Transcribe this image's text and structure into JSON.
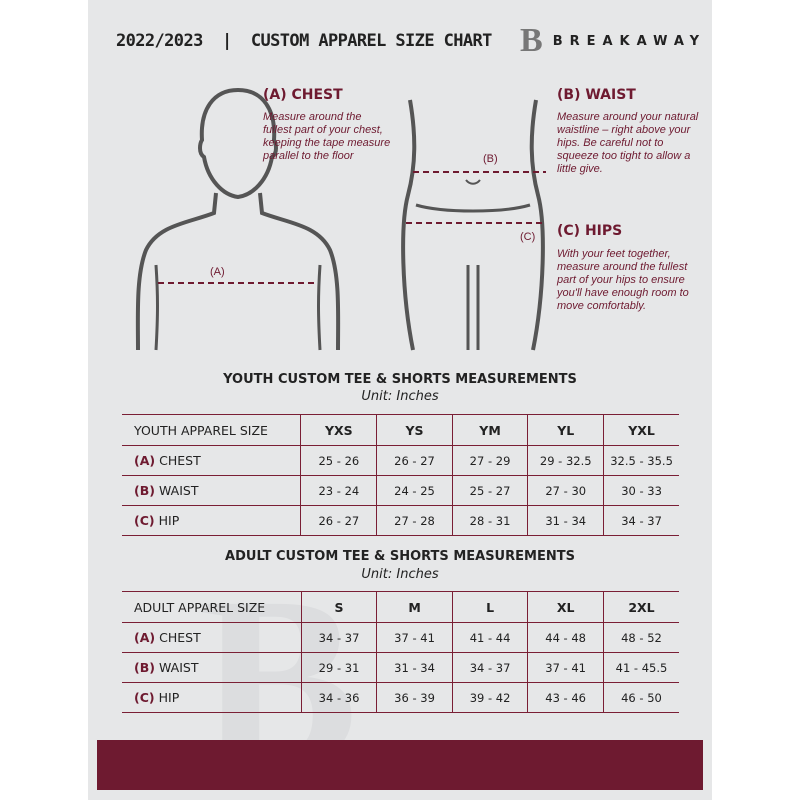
{
  "header": {
    "title": "2022/2023  |  CUSTOM APPAREL SIZE CHART",
    "brand": "BREAKAWAY",
    "logo_letter": "B"
  },
  "guide": {
    "chest": {
      "heading": "(A) CHEST",
      "marker": "(A)",
      "text": "Measure around the fullest part of your chest, keeping the tape measure parallel to the floor"
    },
    "waist": {
      "heading": "(B) WAIST",
      "marker": "(B)",
      "text": "Measure around your natural waistline – right above your hips. Be careful not to squeeze too tight to allow a little give."
    },
    "hips": {
      "heading": "(C) HIPS",
      "marker": "(C)",
      "text": "With your feet together, measure around the fullest part of your hips to ensure you'll have enough room to move comfortably."
    }
  },
  "youth": {
    "title": "YOUTH CUSTOM TEE & SHORTS MEASUREMENTS",
    "unit": "Unit: Inches",
    "size_label": "YOUTH APPAREL SIZE",
    "sizes": [
      "YXS",
      "YS",
      "YM",
      "YL",
      "YXL"
    ],
    "rows": [
      {
        "letter": "(A)",
        "name": "CHEST",
        "values": [
          "25 - 26",
          "26 - 27",
          "27 - 29",
          "29 - 32.5",
          "32.5 - 35.5"
        ]
      },
      {
        "letter": "(B)",
        "name": "WAIST",
        "values": [
          "23 - 24",
          "24 - 25",
          "25 - 27",
          "27 - 30",
          "30 - 33"
        ]
      },
      {
        "letter": "(C)",
        "name": "HIP",
        "values": [
          "26 - 27",
          "27 - 28",
          "28 - 31",
          "31 - 34",
          "34 - 37"
        ]
      }
    ]
  },
  "adult": {
    "title": "ADULT CUSTOM TEE & SHORTS MEASUREMENTS",
    "unit": "Unit: Inches",
    "size_label": "ADULT APPAREL SIZE",
    "sizes": [
      "S",
      "M",
      "L",
      "XL",
      "2XL"
    ],
    "rows": [
      {
        "letter": "(A)",
        "name": "CHEST",
        "values": [
          "34 - 37",
          "37 - 41",
          "41 - 44",
          "44 - 48",
          "48 - 52"
        ]
      },
      {
        "letter": "(B)",
        "name": "WAIST",
        "values": [
          "29 - 31",
          "31 - 34",
          "34 - 37",
          "37 - 41",
          "41 - 45.5"
        ]
      },
      {
        "letter": "(C)",
        "name": "HIP",
        "values": [
          "34 - 36",
          "36 - 39",
          "39 - 42",
          "43 - 46",
          "46 - 50"
        ]
      }
    ]
  },
  "colors": {
    "accent": "#6e1a30",
    "background": "#e6e7e8"
  }
}
